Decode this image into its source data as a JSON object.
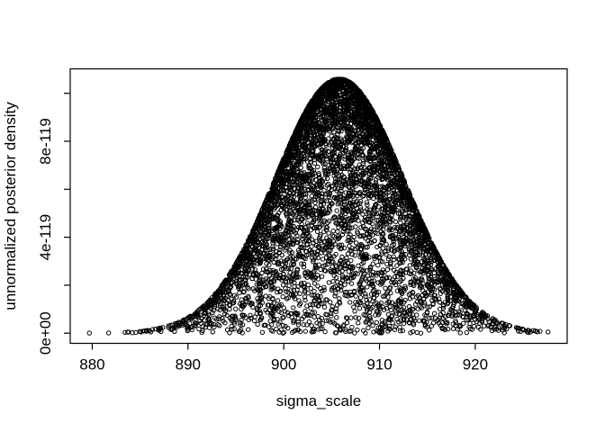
{
  "figure": {
    "background": "#ffffff",
    "axis_color": "#000000",
    "point_color": "#000000"
  },
  "chart_data": {
    "type": "scatter",
    "title": "",
    "xlabel": "sigma_scale",
    "ylabel": "unnormalized posterior density",
    "xlim": [
      877.7,
      929.6
    ],
    "ylim_e119": [
      -0.424,
      11.02
    ],
    "grid": "off",
    "legend": "none",
    "x_ticks": [
      {
        "value": 880,
        "label": "880"
      },
      {
        "value": 890,
        "label": "890"
      },
      {
        "value": 900,
        "label": "900"
      },
      {
        "value": 910,
        "label": "910"
      },
      {
        "value": 920,
        "label": "920"
      }
    ],
    "y_ticks_e119": [
      {
        "value": 0,
        "label": "0e+00"
      },
      {
        "value": 2,
        "label": ""
      },
      {
        "value": 4,
        "label": "4e-119"
      },
      {
        "value": 6,
        "label": ""
      },
      {
        "value": 8,
        "label": "8e-119"
      },
      {
        "value": 10,
        "label": ""
      }
    ],
    "points": {
      "description": "Monte Carlo samples: x drawn from Normal(x_mean, x_sd) clipped to x_range; y = envelope_peak_e119 * exp(-(x-x_mean)^2/(2*envelope_sd^2)) * exp(-z^2/2) with z ~ Normal(0,1); points pile up along the Gaussian envelope giving a dense-edged filled bell shape",
      "marker": "open-circle",
      "marker_radius_px": 2.2,
      "marker_stroke_px": 1,
      "n": 6000,
      "seed": 7,
      "x_mean": 905.8,
      "x_sd": 6.7,
      "x_range": [
        879.6,
        927.7
      ],
      "envelope_peak_e119": 10.6,
      "envelope_sd": 6.7,
      "peak_value": "1.06e-118",
      "baseline_outlier_x": [
        879.7,
        883.7,
        884.2,
        886.3,
        887.0,
        889.0,
        924.4,
        925.6,
        927.6
      ]
    }
  }
}
